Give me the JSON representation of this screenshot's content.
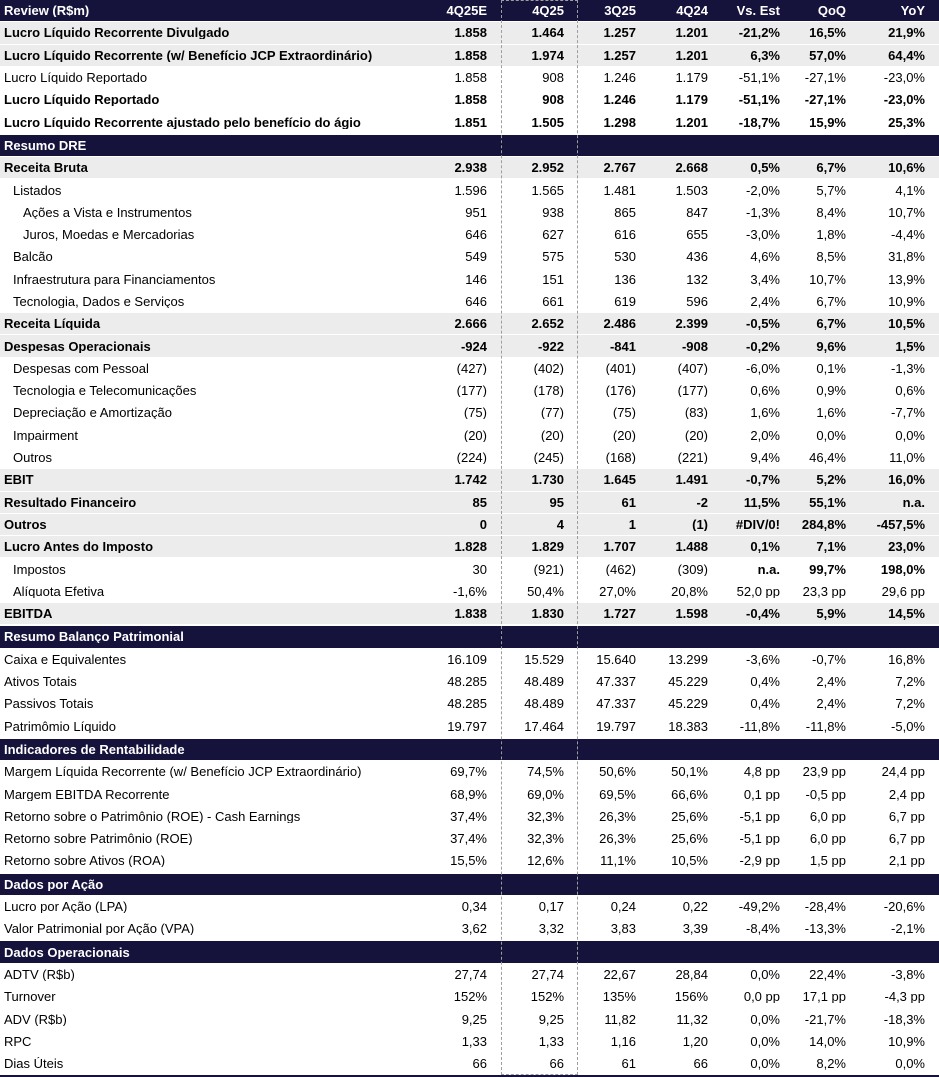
{
  "title": "Review (R$m) earnings table",
  "colors": {
    "section_bar": "#15123B",
    "shaded_row": "#ECECEC",
    "marquee": "#9e9e9e",
    "header_text": "#FFFFFF",
    "body_text": "#000000"
  },
  "selection": {
    "highlighted_column": "4Q25"
  },
  "header": {
    "label": "Review (R$m)",
    "columns": [
      "4Q25E",
      "4Q25",
      "3Q25",
      "4Q24",
      "Vs. Est",
      "QoQ",
      "YoY"
    ]
  },
  "rows": [
    {
      "type": "data",
      "style": "bs",
      "indent": 0,
      "label": "Lucro Líquido Recorrente Divulgado",
      "values": [
        "1.858",
        "1.464",
        "1.257",
        "1.201",
        "-21,2%",
        "16,5%",
        "21,9%"
      ]
    },
    {
      "type": "data",
      "style": "bs",
      "indent": 0,
      "label": "Lucro Líquido Recorrente (w/ Benefício JCP Extraordinário)",
      "values": [
        "1.858",
        "1.974",
        "1.257",
        "1.201",
        "6,3%",
        "57,0%",
        "64,4%"
      ]
    },
    {
      "type": "data",
      "style": "p",
      "indent": 0,
      "label": "Lucro Líquido Reportado",
      "values": [
        "1.858",
        "908",
        "1.246",
        "1.179",
        "-51,1%",
        "-27,1%",
        "-23,0%"
      ]
    },
    {
      "type": "data",
      "style": "b",
      "indent": 0,
      "label": "Lucro Líquido Reportado",
      "values": [
        "1.858",
        "908",
        "1.246",
        "1.179",
        "-51,1%",
        "-27,1%",
        "-23,0%"
      ]
    },
    {
      "type": "data",
      "style": "b",
      "indent": 0,
      "label": "Lucro Líquido Recorrente ajustado pelo benefício do ágio",
      "values": [
        "1.851",
        "1.505",
        "1.298",
        "1.201",
        "-18,7%",
        "15,9%",
        "25,3%"
      ]
    },
    {
      "type": "section",
      "label": "Resumo DRE"
    },
    {
      "type": "data",
      "style": "bs",
      "indent": 0,
      "label": "Receita Bruta",
      "values": [
        "2.938",
        "2.952",
        "2.767",
        "2.668",
        "0,5%",
        "6,7%",
        "10,6%"
      ]
    },
    {
      "type": "data",
      "style": "p",
      "indent": 1,
      "label": "Listados",
      "values": [
        "1.596",
        "1.565",
        "1.481",
        "1.503",
        "-2,0%",
        "5,7%",
        "4,1%"
      ]
    },
    {
      "type": "data",
      "style": "p",
      "indent": 2,
      "label": "Ações a Vista e Instrumentos",
      "values": [
        "951",
        "938",
        "865",
        "847",
        "-1,3%",
        "8,4%",
        "10,7%"
      ]
    },
    {
      "type": "data",
      "style": "p",
      "indent": 2,
      "label": "Juros, Moedas e Mercadorias",
      "values": [
        "646",
        "627",
        "616",
        "655",
        "-3,0%",
        "1,8%",
        "-4,4%"
      ]
    },
    {
      "type": "data",
      "style": "p",
      "indent": 1,
      "label": "Balcão",
      "values": [
        "549",
        "575",
        "530",
        "436",
        "4,6%",
        "8,5%",
        "31,8%"
      ]
    },
    {
      "type": "data",
      "style": "p",
      "indent": 1,
      "label": "Infraestrutura para Financiamentos",
      "values": [
        "146",
        "151",
        "136",
        "132",
        "3,4%",
        "10,7%",
        "13,9%"
      ]
    },
    {
      "type": "data",
      "style": "p",
      "indent": 1,
      "label": "Tecnologia, Dados e Serviços",
      "values": [
        "646",
        "661",
        "619",
        "596",
        "2,4%",
        "6,7%",
        "10,9%"
      ]
    },
    {
      "type": "data",
      "style": "bs",
      "indent": 0,
      "label": "Receita Líquida",
      "values": [
        "2.666",
        "2.652",
        "2.486",
        "2.399",
        "-0,5%",
        "6,7%",
        "10,5%"
      ]
    },
    {
      "type": "data",
      "style": "bs",
      "indent": 0,
      "label": "Despesas Operacionais",
      "values": [
        "-924",
        "-922",
        "-841",
        "-908",
        "-0,2%",
        "9,6%",
        "1,5%"
      ]
    },
    {
      "type": "data",
      "style": "p",
      "indent": 1,
      "label": "Despesas com Pessoal",
      "values": [
        "(427)",
        "(402)",
        "(401)",
        "(407)",
        "-6,0%",
        "0,1%",
        "-1,3%"
      ]
    },
    {
      "type": "data",
      "style": "p",
      "indent": 1,
      "label": "Tecnologia e Telecomunicações",
      "values": [
        "(177)",
        "(178)",
        "(176)",
        "(177)",
        "0,6%",
        "0,9%",
        "0,6%"
      ]
    },
    {
      "type": "data",
      "style": "p",
      "indent": 1,
      "label": "Depreciação e Amortização",
      "values": [
        "(75)",
        "(77)",
        "(75)",
        "(83)",
        "1,6%",
        "1,6%",
        "-7,7%"
      ]
    },
    {
      "type": "data",
      "style": "p",
      "indent": 1,
      "label": "Impairment",
      "values": [
        "(20)",
        "(20)",
        "(20)",
        "(20)",
        "2,0%",
        "0,0%",
        "0,0%"
      ]
    },
    {
      "type": "data",
      "style": "p",
      "indent": 1,
      "label": "Outros",
      "values": [
        "(224)",
        "(245)",
        "(168)",
        "(221)",
        "9,4%",
        "46,4%",
        "11,0%"
      ]
    },
    {
      "type": "data",
      "style": "bs",
      "indent": 0,
      "label": "EBIT",
      "values": [
        "1.742",
        "1.730",
        "1.645",
        "1.491",
        "-0,7%",
        "5,2%",
        "16,0%"
      ]
    },
    {
      "type": "data",
      "style": "bs",
      "indent": 0,
      "label": "Resultado Financeiro",
      "values": [
        "85",
        "95",
        "61",
        "-2",
        "11,5%",
        "55,1%",
        "n.a."
      ]
    },
    {
      "type": "data",
      "style": "bs",
      "indent": 0,
      "label": "Outros",
      "values": [
        "0",
        "4",
        "1",
        "(1)",
        "#DIV/0!",
        "284,8%",
        "-457,5%"
      ]
    },
    {
      "type": "data",
      "style": "bs",
      "indent": 0,
      "label": "Lucro Antes do Imposto",
      "values": [
        "1.828",
        "1.829",
        "1.707",
        "1.488",
        "0,1%",
        "7,1%",
        "23,0%"
      ]
    },
    {
      "type": "data",
      "style": "p",
      "indent": 1,
      "label": "Impostos",
      "values": [
        "30",
        "(921)",
        "(462)",
        "(309)",
        "n.a.",
        "99,7%",
        "198,0%"
      ],
      "bold_value_indexes": [
        4,
        5,
        6
      ]
    },
    {
      "type": "data",
      "style": "p",
      "indent": 1,
      "label": "Alíquota Efetiva",
      "values": [
        "-1,6%",
        "50,4%",
        "27,0%",
        "20,8%",
        "52,0 pp",
        "23,3 pp",
        "29,6 pp"
      ]
    },
    {
      "type": "data",
      "style": "bs",
      "indent": 0,
      "label": "EBITDA",
      "values": [
        "1.838",
        "1.830",
        "1.727",
        "1.598",
        "-0,4%",
        "5,9%",
        "14,5%"
      ]
    },
    {
      "type": "section",
      "label": "Resumo Balanço Patrimonial"
    },
    {
      "type": "data",
      "style": "p",
      "indent": 0,
      "label": "Caixa e Equivalentes",
      "values": [
        "16.109",
        "15.529",
        "15.640",
        "13.299",
        "-3,6%",
        "-0,7%",
        "16,8%"
      ]
    },
    {
      "type": "data",
      "style": "p",
      "indent": 0,
      "label": "Ativos Totais",
      "values": [
        "48.285",
        "48.489",
        "47.337",
        "45.229",
        "0,4%",
        "2,4%",
        "7,2%"
      ]
    },
    {
      "type": "data",
      "style": "p",
      "indent": 0,
      "label": "Passivos Totais",
      "values": [
        "48.285",
        "48.489",
        "47.337",
        "45.229",
        "0,4%",
        "2,4%",
        "7,2%"
      ]
    },
    {
      "type": "data",
      "style": "p",
      "indent": 0,
      "label": "Patrimômio Líquido",
      "values": [
        "19.797",
        "17.464",
        "19.797",
        "18.383",
        "-11,8%",
        "-11,8%",
        "-5,0%"
      ]
    },
    {
      "type": "section",
      "label": "Indicadores de Rentabilidade"
    },
    {
      "type": "data",
      "style": "p",
      "indent": 0,
      "label": "Margem Líquida Recorrente (w/ Benefício JCP Extraordinário)",
      "values": [
        "69,7%",
        "74,5%",
        "50,6%",
        "50,1%",
        "4,8 pp",
        "23,9 pp",
        "24,4 pp"
      ]
    },
    {
      "type": "data",
      "style": "p",
      "indent": 0,
      "label": "Margem EBITDA Recorrente",
      "values": [
        "68,9%",
        "69,0%",
        "69,5%",
        "66,6%",
        "0,1 pp",
        "-0,5 pp",
        "2,4 pp"
      ]
    },
    {
      "type": "data",
      "style": "p",
      "indent": 0,
      "label": "Retorno sobre o Patrimônio (ROE) - Cash Earnings",
      "values": [
        "37,4%",
        "32,3%",
        "26,3%",
        "25,6%",
        "-5,1 pp",
        "6,0 pp",
        "6,7 pp"
      ]
    },
    {
      "type": "data",
      "style": "p",
      "indent": 0,
      "label": "Retorno sobre Patrimônio (ROE)",
      "values": [
        "37,4%",
        "32,3%",
        "26,3%",
        "25,6%",
        "-5,1 pp",
        "6,0 pp",
        "6,7 pp"
      ]
    },
    {
      "type": "data",
      "style": "p",
      "indent": 0,
      "label": "Retorno sobre Ativos (ROA)",
      "values": [
        "15,5%",
        "12,6%",
        "11,1%",
        "10,5%",
        "-2,9 pp",
        "1,5 pp",
        "2,1 pp"
      ]
    },
    {
      "type": "section",
      "label": "Dados por Ação"
    },
    {
      "type": "data",
      "style": "p",
      "indent": 0,
      "label": "Lucro por Ação (LPA)",
      "values": [
        "0,34",
        "0,17",
        "0,24",
        "0,22",
        "-49,2%",
        "-28,4%",
        "-20,6%"
      ]
    },
    {
      "type": "data",
      "style": "p",
      "indent": 0,
      "label": "Valor Patrimonial por Ação (VPA)",
      "values": [
        "3,62",
        "3,32",
        "3,83",
        "3,39",
        "-8,4%",
        "-13,3%",
        "-2,1%"
      ]
    },
    {
      "type": "section",
      "label": "Dados Operacionais"
    },
    {
      "type": "data",
      "style": "p",
      "indent": 0,
      "label": "ADTV (R$b)",
      "values": [
        "27,74",
        "27,74",
        "22,67",
        "28,84",
        "0,0%",
        "22,4%",
        "-3,8%"
      ]
    },
    {
      "type": "data",
      "style": "p",
      "indent": 0,
      "label": "Turnover",
      "values": [
        "152%",
        "152%",
        "135%",
        "156%",
        "0,0 pp",
        "17,1 pp",
        "-4,3 pp"
      ]
    },
    {
      "type": "data",
      "style": "p",
      "indent": 0,
      "label": "ADV (R$b)",
      "values": [
        "9,25",
        "9,25",
        "11,82",
        "11,32",
        "0,0%",
        "-21,7%",
        "-18,3%"
      ]
    },
    {
      "type": "data",
      "style": "p",
      "indent": 0,
      "label": "RPC",
      "values": [
        "1,33",
        "1,33",
        "1,16",
        "1,20",
        "0,0%",
        "14,0%",
        "10,9%"
      ]
    },
    {
      "type": "data",
      "style": "p",
      "indent": 0,
      "label": "Dias Úteis",
      "values": [
        "66",
        "66",
        "61",
        "66",
        "0,0%",
        "8,2%",
        "0,0%"
      ]
    }
  ]
}
